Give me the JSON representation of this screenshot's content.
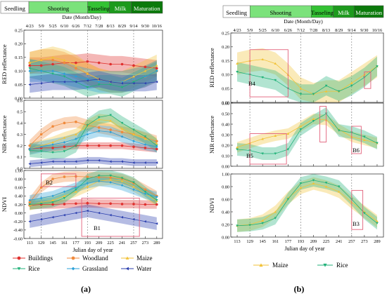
{
  "figure": {
    "label_a": "(a)",
    "label_b": "(b)"
  },
  "stage_bar": {
    "a": [
      {
        "label": "Seedling",
        "color": "#ffffff"
      },
      {
        "label": "Shooting",
        "color": "#7be27b"
      },
      {
        "label": "Tasseling",
        "color": "#33c233"
      },
      {
        "label": "Milk",
        "color": "#1d9a1d"
      },
      {
        "label": "Maturation",
        "color": "#0b7a0b"
      }
    ],
    "b": [
      {
        "label": "Seedling",
        "color": "#ffffff"
      },
      {
        "label": "Shooting",
        "color": "#7be27b"
      },
      {
        "label": "Tasseling",
        "color": "#33c233"
      },
      {
        "label": "Milk",
        "color": "#1d9a1d"
      },
      {
        "label": "Maturation",
        "color": "#0b7a0b"
      }
    ]
  },
  "date_axis_title": "Date (Month/Day)",
  "date_ticks": [
    "4/23",
    "5/9",
    "5/25",
    "6/10",
    "6/26",
    "7/12",
    "7/28",
    "8/13",
    "8/29",
    "9/14",
    "9/30",
    "10/16"
  ],
  "doy_ticks": [
    "113",
    "129",
    "145",
    "161",
    "177",
    "193",
    "209",
    "225",
    "241",
    "257",
    "273",
    "289"
  ],
  "x_axis_title": "Julian day of year",
  "legend_a": [
    {
      "name": "Buildings",
      "color": "#e0302e",
      "marker": "circle"
    },
    {
      "name": "Woodland",
      "color": "#f08a3c",
      "marker": "circle"
    },
    {
      "name": "Maize",
      "color": "#f2c237",
      "marker": "triangle-up"
    },
    {
      "name": "Rice",
      "color": "#22b27a",
      "marker": "triangle-down"
    },
    {
      "name": "Grassland",
      "color": "#2aa0d8",
      "marker": "diamond"
    },
    {
      "name": "Water",
      "color": "#2b3fae",
      "marker": "triangle-left"
    }
  ],
  "legend_b": [
    {
      "name": "Maize",
      "color": "#f2c237",
      "marker": "triangle-up"
    },
    {
      "name": "Rice",
      "color": "#22b27a",
      "marker": "triangle-down"
    }
  ],
  "chart_data": [
    {
      "type": "line",
      "panel": "a-red",
      "ylabel": "RED reflectance",
      "ylim": [
        0,
        0.25
      ],
      "yticks": [
        "0.00",
        "0.05",
        "0.10",
        "0.15",
        "0.20",
        "0.25"
      ],
      "x": [
        113,
        129,
        145,
        161,
        177,
        193,
        209,
        225,
        241,
        257,
        273,
        289
      ],
      "series": [
        {
          "name": "Buildings",
          "values": [
            0.12,
            0.12,
            0.125,
            0.13,
            0.13,
            0.135,
            0.13,
            0.125,
            0.125,
            0.12,
            0.115,
            0.11
          ],
          "spread": 0.03
        },
        {
          "name": "Woodland",
          "values": [
            0.13,
            0.14,
            0.14,
            0.13,
            0.11,
            0.09,
            0.07,
            0.06,
            0.06,
            0.07,
            0.08,
            0.1
          ],
          "spread": 0.04
        },
        {
          "name": "Maize",
          "values": [
            0.13,
            0.14,
            0.15,
            0.14,
            0.12,
            0.09,
            0.07,
            0.06,
            0.06,
            0.08,
            0.1,
            0.12
          ],
          "spread": 0.04
        },
        {
          "name": "Rice",
          "values": [
            0.11,
            0.1,
            0.09,
            0.08,
            0.06,
            0.04,
            0.05,
            0.05,
            0.04,
            0.06,
            0.08,
            0.1
          ],
          "spread": 0.035
        },
        {
          "name": "Grassland",
          "values": [
            0.1,
            0.1,
            0.1,
            0.09,
            0.08,
            0.07,
            0.06,
            0.06,
            0.06,
            0.07,
            0.08,
            0.1
          ],
          "spread": 0.04
        },
        {
          "name": "Water",
          "values": [
            0.05,
            0.055,
            0.06,
            0.06,
            0.06,
            0.065,
            0.07,
            0.06,
            0.055,
            0.055,
            0.055,
            0.06
          ],
          "spread": 0.03
        }
      ]
    },
    {
      "type": "line",
      "panel": "a-nir",
      "ylabel": "NIR reflectance",
      "ylim": [
        0,
        0.6
      ],
      "yticks": [
        "0.0",
        "0.1",
        "0.2",
        "0.3",
        "0.4",
        "0.5",
        "0.6"
      ],
      "x": [
        113,
        129,
        145,
        161,
        177,
        193,
        209,
        225,
        241,
        257,
        273,
        289
      ],
      "series": [
        {
          "name": "Buildings",
          "values": [
            0.17,
            0.18,
            0.18,
            0.19,
            0.2,
            0.2,
            0.2,
            0.2,
            0.2,
            0.19,
            0.18,
            0.17
          ],
          "spread": 0.03
        },
        {
          "name": "Woodland",
          "values": [
            0.2,
            0.3,
            0.37,
            0.4,
            0.41,
            0.38,
            0.36,
            0.34,
            0.32,
            0.3,
            0.27,
            0.24
          ],
          "spread": 0.05
        },
        {
          "name": "Maize",
          "values": [
            0.17,
            0.2,
            0.23,
            0.27,
            0.3,
            0.38,
            0.43,
            0.42,
            0.35,
            0.3,
            0.26,
            0.22
          ],
          "spread": 0.05
        },
        {
          "name": "Rice",
          "values": [
            0.16,
            0.15,
            0.14,
            0.15,
            0.2,
            0.38,
            0.45,
            0.47,
            0.4,
            0.34,
            0.28,
            0.2
          ],
          "spread": 0.06
        },
        {
          "name": "Grassland",
          "values": [
            0.17,
            0.19,
            0.21,
            0.23,
            0.26,
            0.3,
            0.33,
            0.32,
            0.28,
            0.24,
            0.21,
            0.19
          ],
          "spread": 0.05
        },
        {
          "name": "Water",
          "values": [
            0.04,
            0.05,
            0.06,
            0.06,
            0.06,
            0.07,
            0.07,
            0.06,
            0.06,
            0.05,
            0.05,
            0.05
          ],
          "spread": 0.03
        }
      ]
    },
    {
      "type": "line",
      "panel": "a-ndvi",
      "ylabel": "NDVI",
      "ylim": [
        -0.6,
        1.0
      ],
      "yticks": [
        "-0.60",
        "-0.40",
        "-0.20",
        "0.00",
        "0.20",
        "0.40",
        "0.60",
        "0.80",
        "1.00"
      ],
      "x": [
        113,
        129,
        145,
        161,
        177,
        193,
        209,
        225,
        241,
        257,
        273,
        289
      ],
      "series": [
        {
          "name": "Buildings",
          "values": [
            0.18,
            0.2,
            0.2,
            0.21,
            0.22,
            0.23,
            0.22,
            0.22,
            0.21,
            0.21,
            0.2,
            0.2
          ],
          "spread": 0.1
        },
        {
          "name": "Woodland",
          "values": [
            0.25,
            0.6,
            0.8,
            0.85,
            0.86,
            0.85,
            0.84,
            0.83,
            0.8,
            0.7,
            0.55,
            0.4
          ],
          "spread": 0.12
        },
        {
          "name": "Maize",
          "values": [
            0.18,
            0.25,
            0.3,
            0.4,
            0.5,
            0.62,
            0.75,
            0.78,
            0.75,
            0.62,
            0.45,
            0.28
          ],
          "spread": 0.12
        },
        {
          "name": "Rice",
          "values": [
            0.2,
            0.22,
            0.25,
            0.35,
            0.55,
            0.8,
            0.88,
            0.88,
            0.82,
            0.72,
            0.5,
            0.3
          ],
          "spread": 0.12
        },
        {
          "name": "Grassland",
          "values": [
            0.3,
            0.35,
            0.4,
            0.5,
            0.6,
            0.7,
            0.75,
            0.72,
            0.65,
            0.55,
            0.45,
            0.38
          ],
          "spread": 0.12
        },
        {
          "name": "Water",
          "values": [
            -0.2,
            -0.15,
            -0.1,
            -0.05,
            0.0,
            0.05,
            0.0,
            -0.05,
            -0.1,
            -0.15,
            -0.2,
            -0.25
          ],
          "spread": 0.15
        }
      ],
      "annotations": [
        "B1",
        "B2"
      ]
    },
    {
      "type": "line",
      "panel": "b-red",
      "ylabel": "RED reflectance",
      "ylim": [
        0,
        0.25
      ],
      "yticks": [
        "0.00",
        "0.05",
        "0.10",
        "0.15",
        "0.20",
        "0.25"
      ],
      "x": [
        113,
        129,
        145,
        161,
        177,
        193,
        209,
        225,
        241,
        257,
        273,
        289
      ],
      "series": [
        {
          "name": "Maize",
          "values": [
            0.14,
            0.15,
            0.155,
            0.14,
            0.1,
            0.05,
            0.03,
            0.04,
            0.04,
            0.07,
            0.1,
            0.13
          ],
          "spread": 0.04
        },
        {
          "name": "Rice",
          "values": [
            0.11,
            0.1,
            0.09,
            0.08,
            0.05,
            0.03,
            0.03,
            0.06,
            0.04,
            0.06,
            0.09,
            0.13
          ],
          "spread": 0.035
        }
      ],
      "annotations": [
        "B4"
      ]
    },
    {
      "type": "line",
      "panel": "b-nir",
      "ylabel": "NIR reflectance",
      "ylim": [
        0,
        0.6
      ],
      "yticks": [
        "0.00",
        "0.10",
        "0.20",
        "0.30",
        "0.40",
        "0.50",
        "0.60"
      ],
      "x": [
        113,
        129,
        145,
        161,
        177,
        193,
        209,
        225,
        241,
        257,
        273,
        289
      ],
      "series": [
        {
          "name": "Maize",
          "values": [
            0.18,
            0.22,
            0.26,
            0.29,
            0.31,
            0.38,
            0.45,
            0.44,
            0.35,
            0.28,
            0.25,
            0.22
          ],
          "spread": 0.05
        },
        {
          "name": "Rice",
          "values": [
            0.16,
            0.15,
            0.12,
            0.12,
            0.16,
            0.35,
            0.43,
            0.5,
            0.34,
            0.32,
            0.28,
            0.22
          ],
          "spread": 0.06
        }
      ],
      "annotations": [
        "B5",
        "B6"
      ]
    },
    {
      "type": "line",
      "panel": "b-ndvi",
      "ylabel": "NDVI",
      "ylim": [
        0,
        1.0
      ],
      "yticks": [
        "0.00",
        "0.20",
        "0.40",
        "0.60",
        "0.80",
        "1.00"
      ],
      "x": [
        113,
        129,
        145,
        161,
        177,
        193,
        209,
        225,
        241,
        257,
        273,
        289
      ],
      "series": [
        {
          "name": "Maize",
          "values": [
            0.18,
            0.2,
            0.26,
            0.4,
            0.62,
            0.78,
            0.85,
            0.8,
            0.72,
            0.55,
            0.4,
            0.25
          ],
          "spread": 0.1
        },
        {
          "name": "Rice",
          "values": [
            0.18,
            0.19,
            0.22,
            0.3,
            0.6,
            0.85,
            0.9,
            0.86,
            0.8,
            0.6,
            0.38,
            0.22
          ],
          "spread": 0.1
        }
      ],
      "annotations": [
        "B3"
      ]
    }
  ]
}
